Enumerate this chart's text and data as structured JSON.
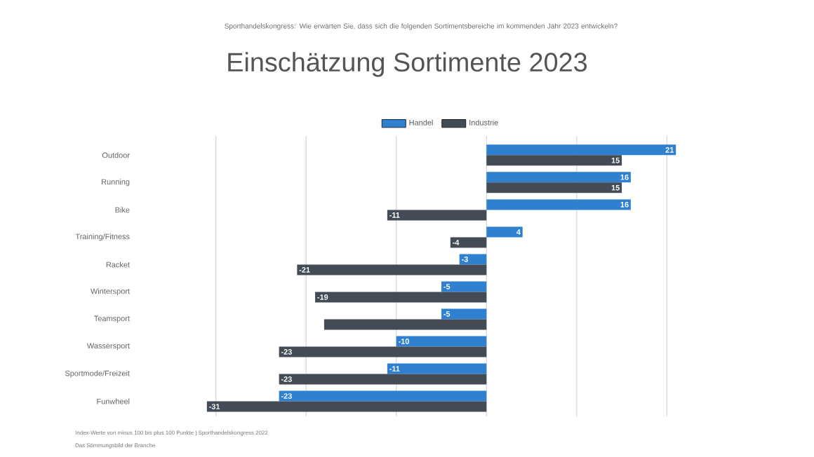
{
  "chart_data": {
    "type": "bar",
    "orientation": "horizontal",
    "title": "Einschätzung Sortimente 2023",
    "subtitle": "Sporthandelskongress: Wie erwarten Sie, dass sich die folgenden Sortimentsbereiche im kommenden Jahr 2023 entwickeln?",
    "annotations": [
      "Index-Werte von minus 100 bis plus 100 Punkte | Sporthandelskongress 2022",
      "Das Stimmungsbild der Branche"
    ],
    "categories": [
      "Outdoor",
      "Running",
      "Bike",
      "Training/Fitness",
      "Racket",
      "Wintersport",
      "Teamsport",
      "Wassersport",
      "Sportmode/Freizeit",
      "Funwheel"
    ],
    "series": [
      {
        "name": "Handel",
        "color": "#2f80d0",
        "values": [
          21,
          16,
          16,
          4,
          -3,
          -5,
          -5,
          -10,
          -11,
          -23
        ],
        "value_labels": [
          "21",
          "16",
          "16",
          "4",
          "-3",
          "-5",
          "-5",
          "-10",
          "-11",
          "-23"
        ]
      },
      {
        "name": "Industrie",
        "color": "#434c56",
        "values": [
          15,
          15,
          -11,
          -4,
          -21,
          -19,
          -18,
          -23,
          -23,
          -31
        ],
        "value_labels": [
          "15",
          "15",
          "-11",
          "-4",
          "-21",
          "-19",
          null,
          "-23",
          "-23",
          "-31"
        ]
      }
    ],
    "xticks": [
      {
        "value": -30,
        "label": null
      },
      {
        "value": -20,
        "label": null
      },
      {
        "value": -10,
        "label": null
      },
      {
        "value": 0,
        "label": null
      },
      {
        "value": 10,
        "label": null
      },
      {
        "value": 20,
        "label": null
      }
    ],
    "grid": "x",
    "legend": "top",
    "tick_labels": "y"
  }
}
